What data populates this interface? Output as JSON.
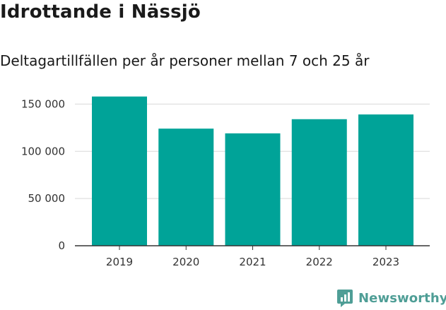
{
  "title": "Idrottande i Nässjö",
  "subtitle": "Deltagartillfällen per år personer mellan 7 och 25 år",
  "brand": {
    "name": "Newsworthy",
    "color": "#4f9e96",
    "icon": "newsworthy-logo-icon"
  },
  "chart_data": {
    "type": "bar",
    "title": "Idrottande i Nässjö",
    "subtitle": "Deltagartillfällen per år personer mellan 7 och 25 år",
    "xlabel": "",
    "ylabel": "",
    "categories": [
      "2019",
      "2020",
      "2021",
      "2022",
      "2023"
    ],
    "values": [
      158000,
      124000,
      119000,
      134000,
      139000
    ],
    "ylim": [
      0,
      160000
    ],
    "yticks": [
      0,
      50000,
      100000,
      150000
    ],
    "ytick_labels": [
      "0",
      "50 000",
      "100 000",
      "150 000"
    ],
    "bar_color": "#00a398",
    "grid": true,
    "legend": "none"
  }
}
